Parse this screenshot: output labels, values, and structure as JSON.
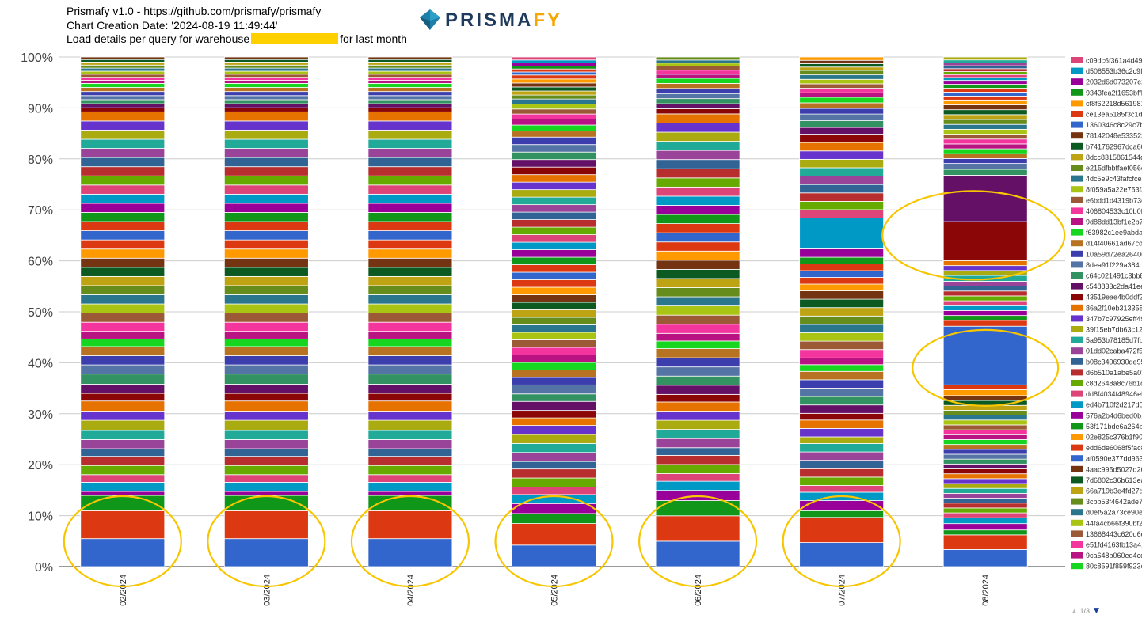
{
  "header": {
    "line1": "Prismafy v1.0 - https://github.com/prismafy/prismafy",
    "line2": "Chart Creation Date: '2024-08-19 11:49:44'",
    "line3_prefix": "Load details per query for warehouse",
    "line3_suffix": "for last month"
  },
  "logo": {
    "text_main": "PRISMA",
    "text_accent": "FY",
    "colors": {
      "prism": "#1e7fa8",
      "word": "#1e3a5c",
      "accent": "#f7a600"
    }
  },
  "chart_data": {
    "type": "bar",
    "stacked": true,
    "percent_stacked": true,
    "categories": [
      "02/2024",
      "03/2024",
      "04/2024",
      "05/2024",
      "06/2024",
      "07/2024",
      "08/2024"
    ],
    "y_ticks": [
      "0%",
      "10%",
      "20%",
      "30%",
      "40%",
      "50%",
      "60%",
      "70%",
      "80%",
      "90%",
      "100%"
    ],
    "ylim": [
      0,
      100
    ],
    "legend_position": "right",
    "legend_pager": "1/3",
    "palette": [
      "#3366cc",
      "#dc3912",
      "#109618",
      "#990099",
      "#0099c6",
      "#dd4477",
      "#66aa00",
      "#b82e2e",
      "#316395",
      "#994499",
      "#22aa99",
      "#aaaa11",
      "#6633cc",
      "#e67300",
      "#8b0707",
      "#651067",
      "#329262",
      "#5574a6",
      "#3b3eac",
      "#b77322",
      "#16d620",
      "#b91383",
      "#f4359e",
      "#9c5935",
      "#a9c413",
      "#2a778d",
      "#668d1c",
      "#bea413",
      "#0c5922",
      "#743411",
      "#ff9900",
      "#dc3912"
    ],
    "series": [
      {
        "name": "c09dc6f361a4d49b0",
        "color": "#dd4477"
      },
      {
        "name": "d508553b36c2c9f9e",
        "color": "#0099c6"
      },
      {
        "name": "2032d6d073207e2e",
        "color": "#990099"
      },
      {
        "name": "9343fea2f1653bffb7",
        "color": "#109618"
      },
      {
        "name": "cf8f62218d561981d",
        "color": "#ff9900"
      },
      {
        "name": "ce13ea5185f3c1d31",
        "color": "#dc3912"
      },
      {
        "name": "1360346c8c29c7b6",
        "color": "#3366cc"
      },
      {
        "name": "78142048e5335232",
        "color": "#743411"
      },
      {
        "name": "b741762967dca6016",
        "color": "#0c5922"
      },
      {
        "name": "8dcc8315861544d4",
        "color": "#bea413"
      },
      {
        "name": "e215dfbbffaef056e7",
        "color": "#668d1c"
      },
      {
        "name": "4dc5e9c43fafcfce27",
        "color": "#2a778d"
      },
      {
        "name": "8f059a5a22e753f3a",
        "color": "#a9c413"
      },
      {
        "name": "e6bdd1d4319b73c9",
        "color": "#9c5935"
      },
      {
        "name": "406804533c10b0fcb",
        "color": "#f4359e"
      },
      {
        "name": "9d88dd13bf1e2b7ce",
        "color": "#b91383"
      },
      {
        "name": "f63982c1ee9abda7e",
        "color": "#16d620"
      },
      {
        "name": "d14f40661ad67cdc3",
        "color": "#b77322"
      },
      {
        "name": "10a59d72ea26406c",
        "color": "#3b3eac"
      },
      {
        "name": "8dea91f229a384ce6",
        "color": "#5574a6"
      },
      {
        "name": "c64c021491c3bb87",
        "color": "#329262"
      },
      {
        "name": "c548833c2da41ee6",
        "color": "#651067"
      },
      {
        "name": "43519eae4b0ddf2dc",
        "color": "#8b0707"
      },
      {
        "name": "86a2f10eb31335877",
        "color": "#e67300"
      },
      {
        "name": "347b7c97925eff493",
        "color": "#6633cc"
      },
      {
        "name": "39f15eb7db63c122e",
        "color": "#aaaa11"
      },
      {
        "name": "5a953b78185d7fb7e",
        "color": "#22aa99"
      },
      {
        "name": "01dd02caba472f562",
        "color": "#994499"
      },
      {
        "name": "b08c3406930de95e",
        "color": "#316395"
      },
      {
        "name": "d6b510a1abe5a03d",
        "color": "#b82e2e"
      },
      {
        "name": "c8d2648a8c76b1d3",
        "color": "#66aa00"
      },
      {
        "name": "dd8f4034f48946eb3",
        "color": "#dd4477"
      },
      {
        "name": "ed4b710f2d217d063",
        "color": "#0099c6"
      },
      {
        "name": "576a2b4d6bed0b13",
        "color": "#990099"
      },
      {
        "name": "53f171bde6a264b6",
        "color": "#109618"
      },
      {
        "name": "02e825c376b1f907e",
        "color": "#ff9900"
      },
      {
        "name": "edd6de6068f5fac8a",
        "color": "#dc3912"
      },
      {
        "name": "af0590e377dd963fe",
        "color": "#3366cc"
      },
      {
        "name": "4aac995d5027d20b",
        "color": "#743411"
      },
      {
        "name": "7d6802c36b613ea0",
        "color": "#0c5922"
      },
      {
        "name": "66a719b3e4fd27de8",
        "color": "#bea413"
      },
      {
        "name": "3cbb53f4642ade7c6",
        "color": "#668d1c"
      },
      {
        "name": "d0ef5a2a73ce90ee4",
        "color": "#2a778d"
      },
      {
        "name": "44fa4cb66f390bf246",
        "color": "#a9c413"
      },
      {
        "name": "13668443c620d6cb",
        "color": "#9c5935"
      },
      {
        "name": "e51fd4163fb13a419",
        "color": "#f4359e"
      },
      {
        "name": "9ca648b060ed4cd9",
        "color": "#b91383"
      },
      {
        "name": "80c8591f859f923c1",
        "color": "#16d620"
      }
    ],
    "stacks": [
      [
        5.5,
        5.5,
        3,
        0.8,
        1.8,
        1.5,
        1.8,
        1.8,
        1.5,
        1.8,
        1.8,
        2,
        1.8,
        2,
        1.5,
        1.8,
        2,
        1.8,
        1.8,
        1.8,
        1.5,
        1.5,
        1.8,
        1.8,
        1.8,
        1.8,
        1.8,
        1.8,
        1.8,
        1.8,
        1.8,
        1.8,
        1.8,
        1.8,
        1.8,
        1.8,
        1.8,
        1.8,
        1.8,
        1.8,
        1.8,
        1.8,
        1.8,
        1.8,
        1.8,
        1.8,
        0.8,
        0.8,
        0.8,
        0.8,
        0.8,
        0.8,
        0.8,
        0.6,
        0.6,
        0.6,
        0.6,
        0.6,
        0.6,
        0.6,
        0.5,
        0.5
      ],
      [
        5.5,
        5.5,
        3,
        0.8,
        1.8,
        1.5,
        1.8,
        1.8,
        1.5,
        1.8,
        1.8,
        2,
        1.8,
        2,
        1.5,
        1.8,
        2,
        1.8,
        1.8,
        1.8,
        1.5,
        1.5,
        1.8,
        1.8,
        1.8,
        1.8,
        1.8,
        1.8,
        1.8,
        1.8,
        1.8,
        1.8,
        1.8,
        1.8,
        1.8,
        1.8,
        1.8,
        1.8,
        1.8,
        1.8,
        1.8,
        1.8,
        1.8,
        1.8,
        1.8,
        1.8,
        0.8,
        0.8,
        0.8,
        0.8,
        0.8,
        0.8,
        0.8,
        0.6,
        0.6,
        0.6,
        0.6,
        0.6,
        0.6,
        0.6,
        0.5,
        0.5
      ],
      [
        5.5,
        5.5,
        3,
        0.8,
        1.8,
        1.5,
        1.8,
        1.8,
        1.5,
        1.8,
        1.8,
        2,
        1.8,
        2,
        1.5,
        1.8,
        2,
        1.8,
        1.8,
        1.8,
        1.5,
        1.5,
        1.8,
        1.8,
        1.8,
        1.8,
        1.8,
        1.8,
        1.8,
        1.8,
        1.8,
        1.8,
        1.8,
        1.8,
        1.8,
        1.8,
        1.8,
        1.8,
        1.8,
        1.8,
        1.8,
        1.8,
        1.8,
        1.8,
        1.8,
        1.8,
        0.8,
        0.8,
        0.8,
        0.8,
        0.8,
        0.8,
        0.8,
        0.6,
        0.6,
        0.6,
        0.6,
        0.6,
        0.6,
        0.6,
        0.5,
        0.5
      ],
      [
        4.3,
        4.3,
        2,
        2,
        1.8,
        1.5,
        1.8,
        1.8,
        1.5,
        1.8,
        1.8,
        1.8,
        1.8,
        1.5,
        1.5,
        1.8,
        1.5,
        1.8,
        1.5,
        1.5,
        1.5,
        1.5,
        1.5,
        1.5,
        1.5,
        1.5,
        1.5,
        1.5,
        1.5,
        1.5,
        1.5,
        1.5,
        1.5,
        1.5,
        1.5,
        1.5,
        1.5,
        1.5,
        1.5,
        1.5,
        1.5,
        1.5,
        1.5,
        1.5,
        1.5,
        1.5,
        1.5,
        1.5,
        1.5,
        1.5,
        1.5,
        1.2,
        1.2,
        1.2,
        1,
        1,
        1,
        1,
        0.8,
        0.8,
        0.8,
        0.8,
        0.8,
        0.8,
        0.6,
        0.6,
        0.6,
        0.6,
        0.6,
        0.6
      ],
      [
        5,
        5,
        3,
        2,
        1.8,
        1.5,
        1.8,
        1.8,
        1.5,
        1.8,
        1.8,
        1.8,
        1.8,
        1.8,
        1.5,
        1.8,
        1.8,
        1.8,
        1.8,
        1.8,
        1.5,
        1.5,
        1.8,
        1.8,
        1.8,
        1.8,
        1.8,
        1.8,
        1.8,
        1.8,
        1.8,
        1.8,
        1.8,
        1.8,
        1.8,
        1.8,
        1.8,
        1.8,
        1.8,
        1.8,
        1.8,
        1.8,
        1.8,
        1.8,
        1.8,
        1.8,
        1,
        1,
        1,
        1,
        1,
        1,
        1,
        0.8,
        0.8,
        0.8,
        0.6,
        0.6,
        0.6
      ],
      [
        4.3,
        4.5,
        1.2,
        1.8,
        1.5,
        1.2,
        1.5,
        1.5,
        1.5,
        1.5,
        1.5,
        1.2,
        1.5,
        1.5,
        1.2,
        1.5,
        1.5,
        1.5,
        1.5,
        1.5,
        1.2,
        1.2,
        1.5,
        1.5,
        1.5,
        1.5,
        1.5,
        1.5,
        1.5,
        1.5,
        1.2,
        1.2,
        1.2,
        1.2,
        1.2,
        1.5,
        5.5,
        1.5,
        1.5,
        1.5,
        1.5,
        1.5,
        1.5,
        1.5,
        1.5,
        1.5,
        1.5,
        1.2,
        1.2,
        1.2,
        1,
        1,
        1,
        0.8,
        0.8,
        0.8,
        0.8,
        0.8,
        0.8,
        0.6,
        0.6,
        0.6,
        0.6
      ],
      [
        3.5,
        3,
        1,
        1.3,
        1.2,
        1,
        1,
        1,
        1,
        1,
        1,
        1,
        1,
        1,
        1,
        1,
        1,
        1,
        1,
        1,
        1,
        1,
        1,
        1,
        1,
        1,
        1,
        1,
        1,
        1,
        1.2,
        1,
        12,
        1.2,
        1,
        1,
        1,
        1,
        1,
        1,
        1,
        1,
        1.2,
        1,
        1,
        1,
        8,
        9.5,
        1.2,
        1.2,
        1,
        1,
        1,
        1,
        1,
        1,
        1,
        1,
        1,
        1,
        1,
        1,
        1,
        0.8,
        0.8,
        0.8,
        0.8,
        0.8,
        0.6,
        0.6,
        0.6,
        0.6,
        0.6,
        0.6,
        0.6,
        0.6
      ]
    ],
    "highlight_circles": [
      {
        "category": "02/2024",
        "y_center": 5,
        "label": ""
      },
      {
        "category": "03/2024",
        "y_center": 5,
        "label": ""
      },
      {
        "category": "04/2024",
        "y_center": 5,
        "label": ""
      },
      {
        "category": "05/2024",
        "y_center": 5,
        "label": ""
      },
      {
        "category": "06/2024",
        "y_center": 5,
        "label": ""
      },
      {
        "category": "07/2024",
        "y_center": 5,
        "label": ""
      },
      {
        "category": "08/2024",
        "y_center": 65,
        "label": ""
      },
      {
        "category": "08/2024",
        "y_center": 39,
        "label": ""
      }
    ]
  },
  "legend": {
    "pager_text": "1/3"
  }
}
